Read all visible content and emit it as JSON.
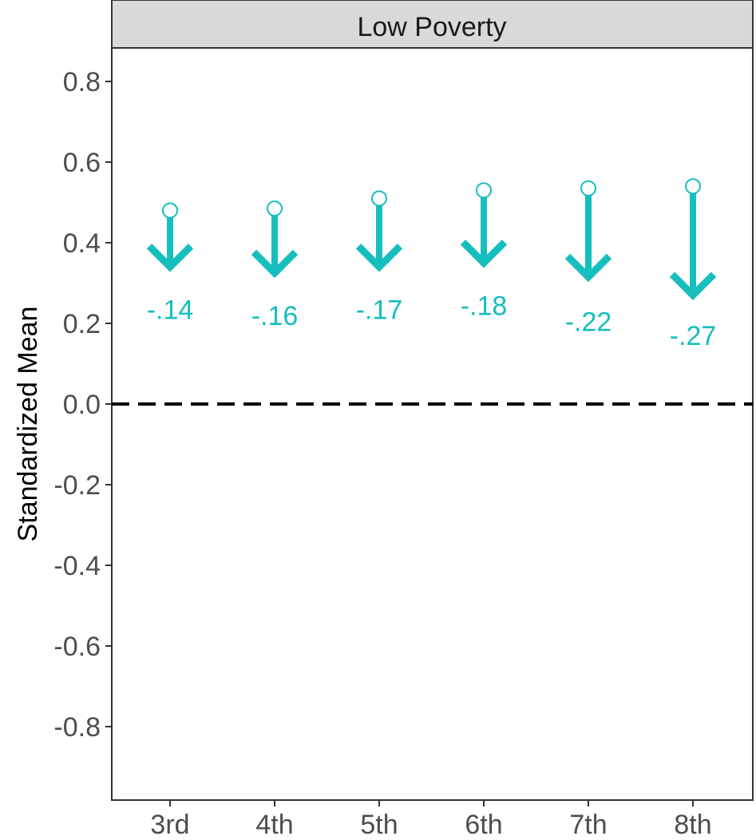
{
  "chart_data": {
    "type": "arrow-dot",
    "panel_title": "Low Poverty",
    "title": "",
    "xlabel": "",
    "ylabel": "Standardized Mean",
    "ylim": [
      -0.95,
      0.88
    ],
    "yticks": [
      0.8,
      0.6,
      0.4,
      0.2,
      0.0,
      -0.2,
      -0.4,
      -0.6,
      -0.8
    ],
    "ytick_labels": [
      "0.8",
      "0.6",
      "0.4",
      "0.2",
      "0.0",
      "-0.2",
      "-0.4",
      "-0.6",
      "-0.8"
    ],
    "categories": [
      "3rd",
      "4th",
      "5th",
      "6th",
      "7th",
      "8th"
    ],
    "series": [
      {
        "start": [
          0.48,
          0.485,
          0.51,
          0.53,
          0.535,
          0.54
        ],
        "end": [
          0.34,
          0.325,
          0.34,
          0.35,
          0.315,
          0.27
        ],
        "labels": [
          "-.14",
          "-.16",
          "-.17",
          "-.18",
          "-.22",
          "-.27"
        ],
        "label_y": [
          0.235,
          0.22,
          0.235,
          0.245,
          0.205,
          0.17
        ]
      }
    ],
    "reference_line": 0.0,
    "grid": false,
    "colors": {
      "accent": "#17BEBE",
      "strip_fill": "#D9D9D9",
      "reference_line": "#000000",
      "axis_text": "#4D4D4D"
    }
  }
}
